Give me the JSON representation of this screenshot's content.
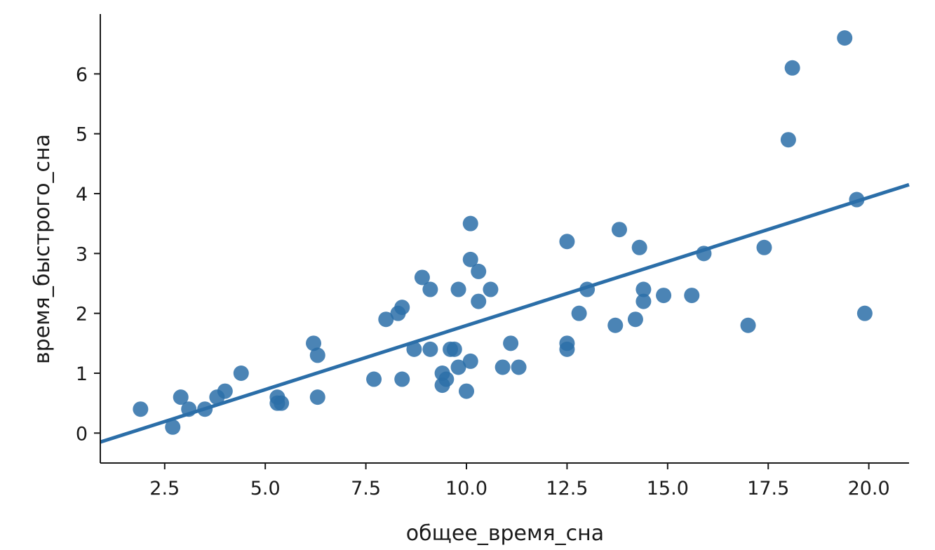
{
  "chart_data": {
    "type": "scatter",
    "title": "",
    "xlabel": "общее_время_сна",
    "ylabel": "время_быстрого_сна",
    "xlim": [
      0.9,
      21.0
    ],
    "ylim": [
      -0.5,
      7.0
    ],
    "xticks": [
      2.5,
      5.0,
      7.5,
      10.0,
      12.5,
      15.0,
      17.5,
      20.0
    ],
    "xtick_labels": [
      "2.5",
      "5.0",
      "7.5",
      "10.0",
      "12.5",
      "15.0",
      "17.5",
      "20.0"
    ],
    "yticks": [
      0,
      1,
      2,
      3,
      4,
      5,
      6
    ],
    "ytick_labels": [
      "0",
      "1",
      "2",
      "3",
      "4",
      "5",
      "6"
    ],
    "grid": false,
    "color": "#2b6ea8",
    "regression_line": {
      "x": [
        0.9,
        21.0
      ],
      "y": [
        -0.15,
        4.15
      ]
    },
    "points": [
      [
        1.9,
        0.4
      ],
      [
        2.7,
        0.1
      ],
      [
        2.9,
        0.6
      ],
      [
        3.1,
        0.4
      ],
      [
        3.5,
        0.4
      ],
      [
        3.8,
        0.6
      ],
      [
        4.0,
        0.7
      ],
      [
        4.4,
        1.0
      ],
      [
        5.3,
        0.6
      ],
      [
        5.4,
        0.5
      ],
      [
        5.3,
        0.5
      ],
      [
        6.2,
        1.5
      ],
      [
        6.3,
        1.3
      ],
      [
        6.3,
        0.6
      ],
      [
        7.7,
        0.9
      ],
      [
        8.0,
        1.9
      ],
      [
        8.3,
        2.0
      ],
      [
        8.4,
        2.1
      ],
      [
        8.4,
        0.9
      ],
      [
        8.7,
        1.4
      ],
      [
        8.9,
        2.6
      ],
      [
        9.1,
        2.4
      ],
      [
        9.1,
        1.4
      ],
      [
        9.4,
        1.0
      ],
      [
        9.4,
        0.8
      ],
      [
        9.5,
        0.9
      ],
      [
        9.6,
        1.4
      ],
      [
        9.7,
        1.4
      ],
      [
        9.8,
        1.1
      ],
      [
        9.8,
        2.4
      ],
      [
        10.0,
        0.7
      ],
      [
        10.1,
        3.5
      ],
      [
        10.1,
        2.9
      ],
      [
        10.1,
        1.2
      ],
      [
        10.3,
        2.7
      ],
      [
        10.3,
        2.2
      ],
      [
        10.6,
        2.4
      ],
      [
        10.9,
        1.1
      ],
      [
        11.1,
        1.5
      ],
      [
        11.3,
        1.1
      ],
      [
        12.5,
        3.2
      ],
      [
        12.5,
        1.5
      ],
      [
        12.5,
        1.4
      ],
      [
        12.8,
        2.0
      ],
      [
        13.0,
        2.4
      ],
      [
        13.7,
        1.8
      ],
      [
        13.8,
        3.4
      ],
      [
        14.2,
        1.9
      ],
      [
        14.3,
        3.1
      ],
      [
        14.4,
        2.4
      ],
      [
        14.4,
        2.2
      ],
      [
        14.9,
        2.3
      ],
      [
        15.6,
        2.3
      ],
      [
        15.9,
        3.0
      ],
      [
        17.0,
        1.8
      ],
      [
        17.4,
        3.1
      ],
      [
        18.0,
        4.9
      ],
      [
        18.1,
        6.1
      ],
      [
        19.4,
        6.6
      ],
      [
        19.7,
        3.9
      ],
      [
        19.9,
        2.0
      ]
    ]
  }
}
